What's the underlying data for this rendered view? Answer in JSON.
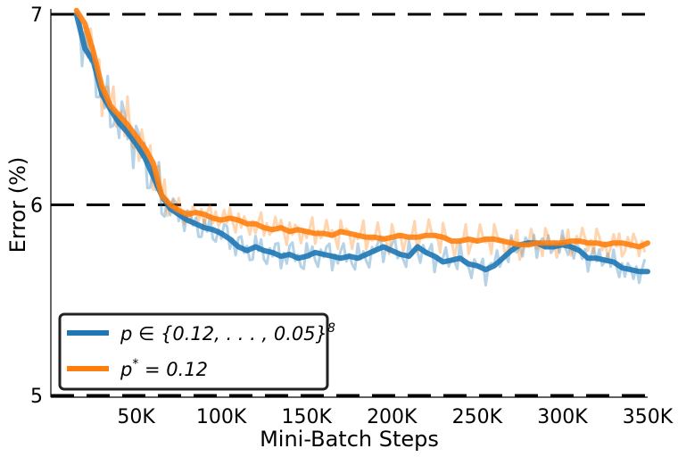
{
  "chart_data": {
    "type": "line",
    "xlabel": "Mini-Batch Steps",
    "ylabel": "Error (%)",
    "xlim": [
      0,
      350000
    ],
    "ylim": [
      5,
      7
    ],
    "x_tick_values": [
      50000,
      100000,
      150000,
      200000,
      250000,
      300000,
      350000
    ],
    "x_tick_labels": [
      "50K",
      "100K",
      "150K",
      "200K",
      "250K",
      "300K",
      "350K"
    ],
    "y_tick_values": [
      5,
      6,
      7
    ],
    "y_tick_labels": [
      "5",
      "6",
      "7"
    ],
    "grid": "dashed horizontal lines at y-ticks",
    "legend_placement": "bottom-left",
    "series": [
      {
        "name": "p ∈ {0.12, . . . , 0.05}^8",
        "legend_main": "p ∈ {0.12, . . . , 0.05}",
        "legend_sup": "8",
        "color": "#1f77b4",
        "x": [
          15000,
          20000,
          25000,
          30000,
          35000,
          40000,
          45000,
          50000,
          55000,
          60000,
          65000,
          70000,
          75000,
          80000,
          85000,
          90000,
          95000,
          100000,
          105000,
          110000,
          115000,
          120000,
          125000,
          130000,
          135000,
          140000,
          145000,
          150000,
          155000,
          160000,
          165000,
          170000,
          175000,
          180000,
          185000,
          190000,
          195000,
          200000,
          205000,
          210000,
          215000,
          220000,
          225000,
          230000,
          235000,
          240000,
          245000,
          250000,
          255000,
          260000,
          265000,
          270000,
          275000,
          280000,
          285000,
          290000,
          295000,
          300000,
          305000,
          310000,
          315000,
          320000,
          325000,
          330000,
          335000,
          340000,
          345000,
          350000
        ],
        "values": [
          7.0,
          6.82,
          6.75,
          6.58,
          6.5,
          6.43,
          6.38,
          6.32,
          6.25,
          6.15,
          6.05,
          5.98,
          5.95,
          5.92,
          5.9,
          5.88,
          5.87,
          5.85,
          5.82,
          5.78,
          5.76,
          5.78,
          5.76,
          5.75,
          5.73,
          5.74,
          5.72,
          5.73,
          5.75,
          5.74,
          5.73,
          5.72,
          5.73,
          5.72,
          5.74,
          5.76,
          5.78,
          5.76,
          5.74,
          5.73,
          5.78,
          5.75,
          5.73,
          5.7,
          5.71,
          5.72,
          5.69,
          5.68,
          5.66,
          5.68,
          5.72,
          5.76,
          5.79,
          5.8,
          5.8,
          5.78,
          5.78,
          5.79,
          5.78,
          5.76,
          5.72,
          5.72,
          5.71,
          5.7,
          5.67,
          5.66,
          5.65,
          5.65
        ]
      },
      {
        "name": "p* = 0.12",
        "legend_main": "p",
        "legend_sup": "*",
        "legend_tail": " = 0.12",
        "color": "#ff7f0e",
        "x": [
          15000,
          20000,
          25000,
          30000,
          35000,
          40000,
          45000,
          50000,
          55000,
          60000,
          65000,
          70000,
          75000,
          80000,
          85000,
          90000,
          95000,
          100000,
          105000,
          110000,
          115000,
          120000,
          125000,
          130000,
          135000,
          140000,
          145000,
          150000,
          155000,
          160000,
          165000,
          170000,
          175000,
          180000,
          185000,
          190000,
          195000,
          200000,
          205000,
          210000,
          215000,
          220000,
          225000,
          230000,
          235000,
          240000,
          245000,
          250000,
          255000,
          260000,
          265000,
          270000,
          275000,
          280000,
          285000,
          290000,
          295000,
          300000,
          305000,
          310000,
          315000,
          320000,
          325000,
          330000,
          335000,
          340000,
          345000,
          350000
        ],
        "values": [
          7.02,
          6.95,
          6.8,
          6.62,
          6.52,
          6.47,
          6.42,
          6.36,
          6.3,
          6.22,
          6.05,
          6.0,
          5.97,
          5.95,
          5.96,
          5.95,
          5.93,
          5.92,
          5.93,
          5.92,
          5.9,
          5.9,
          5.88,
          5.87,
          5.88,
          5.86,
          5.87,
          5.86,
          5.85,
          5.85,
          5.84,
          5.86,
          5.85,
          5.84,
          5.83,
          5.83,
          5.82,
          5.83,
          5.84,
          5.83,
          5.83,
          5.84,
          5.84,
          5.83,
          5.81,
          5.81,
          5.82,
          5.81,
          5.82,
          5.82,
          5.81,
          5.8,
          5.79,
          5.79,
          5.8,
          5.8,
          5.8,
          5.8,
          5.81,
          5.81,
          5.8,
          5.8,
          5.79,
          5.8,
          5.8,
          5.79,
          5.78,
          5.8
        ]
      }
    ]
  }
}
